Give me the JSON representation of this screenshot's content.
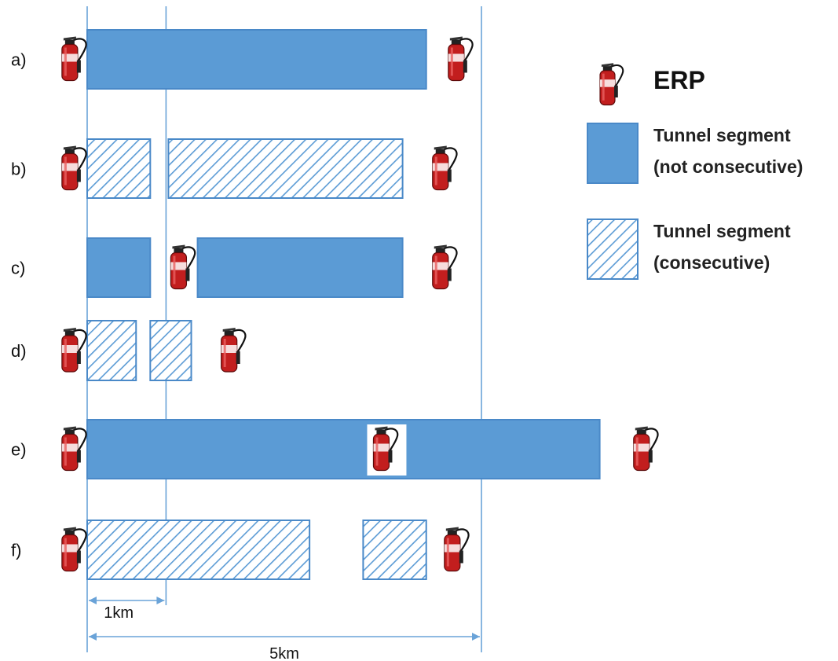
{
  "rows": [
    {
      "label": "a)",
      "segments": [
        {
          "start_km": 0,
          "end_km": 4.3,
          "style": "not-consecutive"
        }
      ],
      "erps_km": [
        -0.3,
        4.6
      ]
    },
    {
      "label": "b)",
      "segments": [
        {
          "start_km": 0,
          "end_km": 0.8,
          "style": "consecutive"
        },
        {
          "start_km": 1.03,
          "end_km": 4.0,
          "style": "consecutive"
        }
      ],
      "erps_km": [
        -0.3,
        4.4
      ]
    },
    {
      "label": "c)",
      "segments": [
        {
          "start_km": 0,
          "end_km": 0.8,
          "style": "not-consecutive"
        },
        {
          "start_km": 1.4,
          "end_km": 4.0,
          "style": "not-consecutive"
        }
      ],
      "erps_km": [
        1.08,
        4.4
      ]
    },
    {
      "label": "d)",
      "segments": [
        {
          "start_km": 0,
          "end_km": 0.62,
          "style": "consecutive"
        },
        {
          "start_km": 0.8,
          "end_km": 1.32,
          "style": "consecutive"
        }
      ],
      "erps_km": [
        -0.3,
        1.72
      ]
    },
    {
      "label": "e)",
      "segments": [
        {
          "start_km": 0,
          "end_km": 6.5,
          "style": "not-consecutive"
        }
      ],
      "erps_km": [
        -0.3,
        3.65,
        6.95
      ]
    },
    {
      "label": "f)",
      "segments": [
        {
          "start_km": 0,
          "end_km": 2.82,
          "style": "consecutive"
        },
        {
          "start_km": 3.5,
          "end_km": 4.3,
          "style": "consecutive"
        }
      ],
      "erps_km": [
        -0.3,
        4.55
      ]
    }
  ],
  "dimensions": [
    {
      "label": "1km",
      "from_km": 0,
      "to_km": 1
    },
    {
      "label": "5km",
      "from_km": 0,
      "to_km": 5
    }
  ],
  "legend": {
    "erp_label": "ERP",
    "items": [
      {
        "style": "not-consecutive",
        "line1": "Tunnel segment",
        "line2": "(not consecutive)"
      },
      {
        "style": "consecutive",
        "line1": "Tunnel segment",
        "line2": "(consecutive)"
      }
    ]
  },
  "colors": {
    "solid_fill": "#5b9bd5",
    "outline": "#4a89c8",
    "hatch": "#5b9bd5",
    "guide": "#6aa3d8",
    "extinguisher": "#c21e1e"
  },
  "icons": {
    "erp": "fire-extinguisher-icon"
  }
}
